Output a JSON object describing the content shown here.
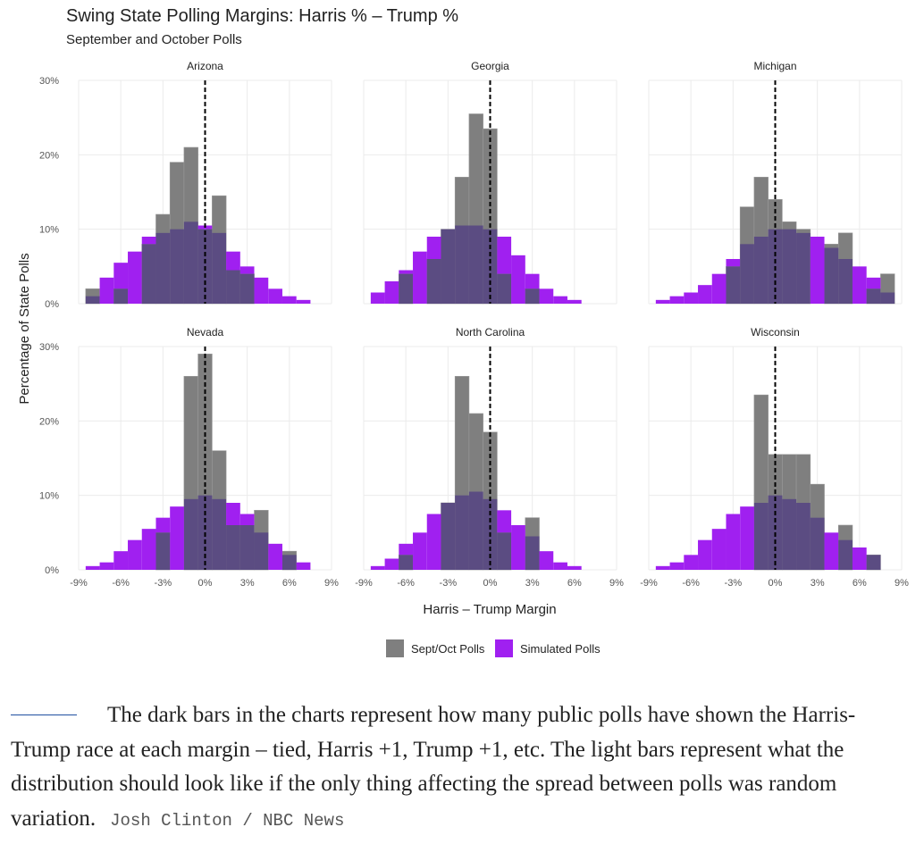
{
  "chart_data": {
    "type": "bar",
    "title": "Swing State Polling Margins: Harris % – Trump %",
    "subtitle": "September and October Polls",
    "xlabel": "Harris – Trump Margin",
    "ylabel": "Percentage of State Polls",
    "xlim": [
      -9,
      9
    ],
    "ylim": [
      0,
      30
    ],
    "x_ticks": [
      -9,
      -6,
      -3,
      0,
      3,
      6,
      9
    ],
    "x_tick_labels": [
      "-9%",
      "-6%",
      "-3%",
      "0%",
      "3%",
      "6%",
      "9%"
    ],
    "y_ticks": [
      0,
      10,
      20,
      30
    ],
    "y_tick_labels": [
      "0%",
      "10%",
      "20%",
      "30%"
    ],
    "grid": true,
    "legend_position": "bottom",
    "legend": [
      {
        "label": "Sept/Oct Polls",
        "color": "#7f7f7f"
      },
      {
        "label": "Simulated Polls",
        "color": "#a020f0"
      }
    ],
    "reference_line": {
      "x": 0,
      "style": "dashed"
    },
    "facets": [
      {
        "name": "Arizona",
        "polls": [
          {
            "x": -8,
            "v": 2
          },
          {
            "x": -6,
            "v": 2
          },
          {
            "x": -4,
            "v": 8
          },
          {
            "x": -3,
            "v": 12
          },
          {
            "x": -2,
            "v": 19
          },
          {
            "x": -1,
            "v": 21
          },
          {
            "x": 0,
            "v": 10
          },
          {
            "x": 1,
            "v": 14.5
          },
          {
            "x": 2,
            "v": 4.5
          },
          {
            "x": 3,
            "v": 4
          }
        ],
        "simulated": [
          {
            "x": -8,
            "v": 1
          },
          {
            "x": -7,
            "v": 3.5
          },
          {
            "x": -6,
            "v": 5.5
          },
          {
            "x": -5,
            "v": 7
          },
          {
            "x": -4,
            "v": 9
          },
          {
            "x": -3,
            "v": 9.5
          },
          {
            "x": -2,
            "v": 10
          },
          {
            "x": -1,
            "v": 11
          },
          {
            "x": 0,
            "v": 10.5
          },
          {
            "x": 1,
            "v": 9.5
          },
          {
            "x": 2,
            "v": 7
          },
          {
            "x": 3,
            "v": 5
          },
          {
            "x": 4,
            "v": 3.5
          },
          {
            "x": 5,
            "v": 2
          },
          {
            "x": 6,
            "v": 1
          },
          {
            "x": 7,
            "v": 0.5
          }
        ]
      },
      {
        "name": "Georgia",
        "polls": [
          {
            "x": -6,
            "v": 4
          },
          {
            "x": -4,
            "v": 6
          },
          {
            "x": -3,
            "v": 10
          },
          {
            "x": -2,
            "v": 17
          },
          {
            "x": -1,
            "v": 25.5
          },
          {
            "x": 0,
            "v": 23.5
          },
          {
            "x": 1,
            "v": 4
          },
          {
            "x": 3,
            "v": 2
          }
        ],
        "simulated": [
          {
            "x": -8,
            "v": 1.5
          },
          {
            "x": -7,
            "v": 3
          },
          {
            "x": -6,
            "v": 4.5
          },
          {
            "x": -5,
            "v": 7
          },
          {
            "x": -4,
            "v": 9
          },
          {
            "x": -3,
            "v": 10
          },
          {
            "x": -2,
            "v": 10.5
          },
          {
            "x": -1,
            "v": 10.5
          },
          {
            "x": 0,
            "v": 10
          },
          {
            "x": 1,
            "v": 9
          },
          {
            "x": 2,
            "v": 6.5
          },
          {
            "x": 3,
            "v": 4
          },
          {
            "x": 4,
            "v": 2
          },
          {
            "x": 5,
            "v": 1
          },
          {
            "x": 6,
            "v": 0.5
          }
        ]
      },
      {
        "name": "Michigan",
        "polls": [
          {
            "x": -3,
            "v": 5
          },
          {
            "x": -2,
            "v": 13
          },
          {
            "x": -1,
            "v": 17
          },
          {
            "x": 0,
            "v": 14
          },
          {
            "x": 1,
            "v": 11
          },
          {
            "x": 2,
            "v": 10
          },
          {
            "x": 4,
            "v": 8
          },
          {
            "x": 5,
            "v": 9.5
          },
          {
            "x": 7,
            "v": 2
          },
          {
            "x": 8,
            "v": 4
          }
        ],
        "simulated": [
          {
            "x": -8,
            "v": 0.5
          },
          {
            "x": -7,
            "v": 1
          },
          {
            "x": -6,
            "v": 1.5
          },
          {
            "x": -5,
            "v": 2.5
          },
          {
            "x": -4,
            "v": 4
          },
          {
            "x": -3,
            "v": 6
          },
          {
            "x": -2,
            "v": 8
          },
          {
            "x": -1,
            "v": 9
          },
          {
            "x": 0,
            "v": 10
          },
          {
            "x": 1,
            "v": 10
          },
          {
            "x": 2,
            "v": 9.5
          },
          {
            "x": 3,
            "v": 9
          },
          {
            "x": 4,
            "v": 7.5
          },
          {
            "x": 5,
            "v": 6
          },
          {
            "x": 6,
            "v": 5
          },
          {
            "x": 7,
            "v": 3.5
          },
          {
            "x": 8,
            "v": 1.5
          }
        ]
      },
      {
        "name": "Nevada",
        "polls": [
          {
            "x": -3,
            "v": 5
          },
          {
            "x": -1,
            "v": 26
          },
          {
            "x": 0,
            "v": 29
          },
          {
            "x": 1,
            "v": 16
          },
          {
            "x": 2,
            "v": 6
          },
          {
            "x": 3,
            "v": 6
          },
          {
            "x": 4,
            "v": 8
          },
          {
            "x": 6,
            "v": 2.5
          }
        ],
        "simulated": [
          {
            "x": -8,
            "v": 0.5
          },
          {
            "x": -7,
            "v": 1
          },
          {
            "x": -6,
            "v": 2.5
          },
          {
            "x": -5,
            "v": 4
          },
          {
            "x": -4,
            "v": 5.5
          },
          {
            "x": -3,
            "v": 7
          },
          {
            "x": -2,
            "v": 8.5
          },
          {
            "x": -1,
            "v": 9.5
          },
          {
            "x": 0,
            "v": 10
          },
          {
            "x": 1,
            "v": 9.5
          },
          {
            "x": 2,
            "v": 9
          },
          {
            "x": 3,
            "v": 7.5
          },
          {
            "x": 4,
            "v": 5
          },
          {
            "x": 5,
            "v": 3.5
          },
          {
            "x": 6,
            "v": 2
          },
          {
            "x": 7,
            "v": 1
          }
        ]
      },
      {
        "name": "North Carolina",
        "polls": [
          {
            "x": -6,
            "v": 2
          },
          {
            "x": -3,
            "v": 9
          },
          {
            "x": -2,
            "v": 26
          },
          {
            "x": -1,
            "v": 21
          },
          {
            "x": 0,
            "v": 18.5
          },
          {
            "x": 1,
            "v": 5
          },
          {
            "x": 3,
            "v": 7
          }
        ],
        "simulated": [
          {
            "x": -8,
            "v": 0.5
          },
          {
            "x": -7,
            "v": 1.5
          },
          {
            "x": -6,
            "v": 3.5
          },
          {
            "x": -5,
            "v": 5
          },
          {
            "x": -4,
            "v": 7.5
          },
          {
            "x": -3,
            "v": 9
          },
          {
            "x": -2,
            "v": 10
          },
          {
            "x": -1,
            "v": 10.5
          },
          {
            "x": 0,
            "v": 9.5
          },
          {
            "x": 1,
            "v": 8
          },
          {
            "x": 2,
            "v": 6
          },
          {
            "x": 3,
            "v": 4.5
          },
          {
            "x": 4,
            "v": 2.5
          },
          {
            "x": 5,
            "v": 1
          },
          {
            "x": 6,
            "v": 0.5
          }
        ]
      },
      {
        "name": "Wisconsin",
        "polls": [
          {
            "x": -1,
            "v": 23.5
          },
          {
            "x": 0,
            "v": 15.5
          },
          {
            "x": 1,
            "v": 15.5
          },
          {
            "x": 2,
            "v": 15.5
          },
          {
            "x": 3,
            "v": 11.5
          },
          {
            "x": 5,
            "v": 6
          },
          {
            "x": 7,
            "v": 2
          }
        ],
        "simulated": [
          {
            "x": -8,
            "v": 0.5
          },
          {
            "x": -7,
            "v": 1
          },
          {
            "x": -6,
            "v": 2
          },
          {
            "x": -5,
            "v": 4
          },
          {
            "x": -4,
            "v": 5.5
          },
          {
            "x": -3,
            "v": 7.5
          },
          {
            "x": -2,
            "v": 8.5
          },
          {
            "x": -1,
            "v": 9
          },
          {
            "x": 0,
            "v": 10
          },
          {
            "x": 1,
            "v": 9.5
          },
          {
            "x": 2,
            "v": 9
          },
          {
            "x": 3,
            "v": 7
          },
          {
            "x": 4,
            "v": 5
          },
          {
            "x": 5,
            "v": 4
          },
          {
            "x": 6,
            "v": 3
          },
          {
            "x": 7,
            "v": 2
          }
        ]
      }
    ]
  },
  "caption": {
    "text": "The dark bars in the charts represent how many public polls have shown the Harris-Trump race at each margin – tied, Harris +1, Trump +1, etc. The light bars represent what the distribution should look like if the only thing affecting the spread between polls was random variation.",
    "credit": "Josh Clinton / NBC News"
  },
  "colors": {
    "polls": "#7f7f7f",
    "simulated": "#a020f0",
    "overlap": "#5b4c82",
    "grid": "#ebebeb",
    "caption_rule": "#1f4fa0"
  }
}
